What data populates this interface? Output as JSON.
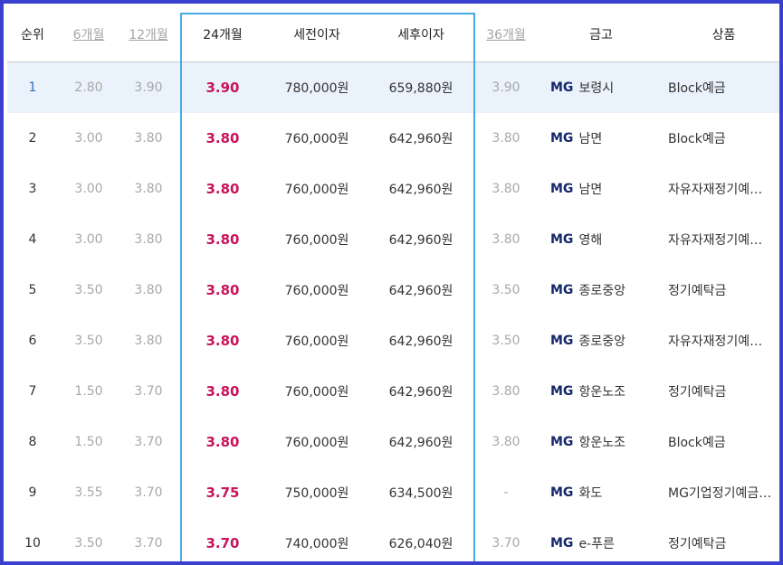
{
  "header": {
    "rank": "순위",
    "m6": "6개월",
    "m12": "12개월",
    "m24": "24개월",
    "pre_tax": "세전이자",
    "post_tax": "세후이자",
    "m36": "36개월",
    "bank": "금고",
    "product": "상품"
  },
  "bank_prefix": "MG",
  "colors": {
    "frame": "#3b3fce",
    "highlight_border": "#4aa9e4",
    "rate_24m": "#c8145a",
    "first_row_bg": "#eaf2fb"
  },
  "rows": [
    {
      "rank": "1",
      "m6": "2.80",
      "m12": "3.90",
      "m24": "3.90",
      "pre_tax": "780,000원",
      "post_tax": "659,880원",
      "m36": "3.90",
      "bank": "보령시",
      "product": "Block예금"
    },
    {
      "rank": "2",
      "m6": "3.00",
      "m12": "3.80",
      "m24": "3.80",
      "pre_tax": "760,000원",
      "post_tax": "642,960원",
      "m36": "3.80",
      "bank": "남면",
      "product": "Block예금"
    },
    {
      "rank": "3",
      "m6": "3.00",
      "m12": "3.80",
      "m24": "3.80",
      "pre_tax": "760,000원",
      "post_tax": "642,960원",
      "m36": "3.80",
      "bank": "남면",
      "product": "자유자재정기예…"
    },
    {
      "rank": "4",
      "m6": "3.00",
      "m12": "3.80",
      "m24": "3.80",
      "pre_tax": "760,000원",
      "post_tax": "642,960원",
      "m36": "3.80",
      "bank": "영해",
      "product": "자유자재정기예…"
    },
    {
      "rank": "5",
      "m6": "3.50",
      "m12": "3.80",
      "m24": "3.80",
      "pre_tax": "760,000원",
      "post_tax": "642,960원",
      "m36": "3.50",
      "bank": "종로중앙",
      "product": "정기예탁금"
    },
    {
      "rank": "6",
      "m6": "3.50",
      "m12": "3.80",
      "m24": "3.80",
      "pre_tax": "760,000원",
      "post_tax": "642,960원",
      "m36": "3.50",
      "bank": "종로중앙",
      "product": "자유자재정기예…"
    },
    {
      "rank": "7",
      "m6": "1.50",
      "m12": "3.70",
      "m24": "3.80",
      "pre_tax": "760,000원",
      "post_tax": "642,960원",
      "m36": "3.80",
      "bank": "항운노조",
      "product": "정기예탁금"
    },
    {
      "rank": "8",
      "m6": "1.50",
      "m12": "3.70",
      "m24": "3.80",
      "pre_tax": "760,000원",
      "post_tax": "642,960원",
      "m36": "3.80",
      "bank": "항운노조",
      "product": "Block예금"
    },
    {
      "rank": "9",
      "m6": "3.55",
      "m12": "3.70",
      "m24": "3.75",
      "pre_tax": "750,000원",
      "post_tax": "634,500원",
      "m36": "-",
      "bank": "화도",
      "product": "MG기업정기예금…"
    },
    {
      "rank": "10",
      "m6": "3.50",
      "m12": "3.70",
      "m24": "3.70",
      "pre_tax": "740,000원",
      "post_tax": "626,040원",
      "m36": "3.70",
      "bank": "e-푸른",
      "product": "정기예탁금"
    }
  ]
}
